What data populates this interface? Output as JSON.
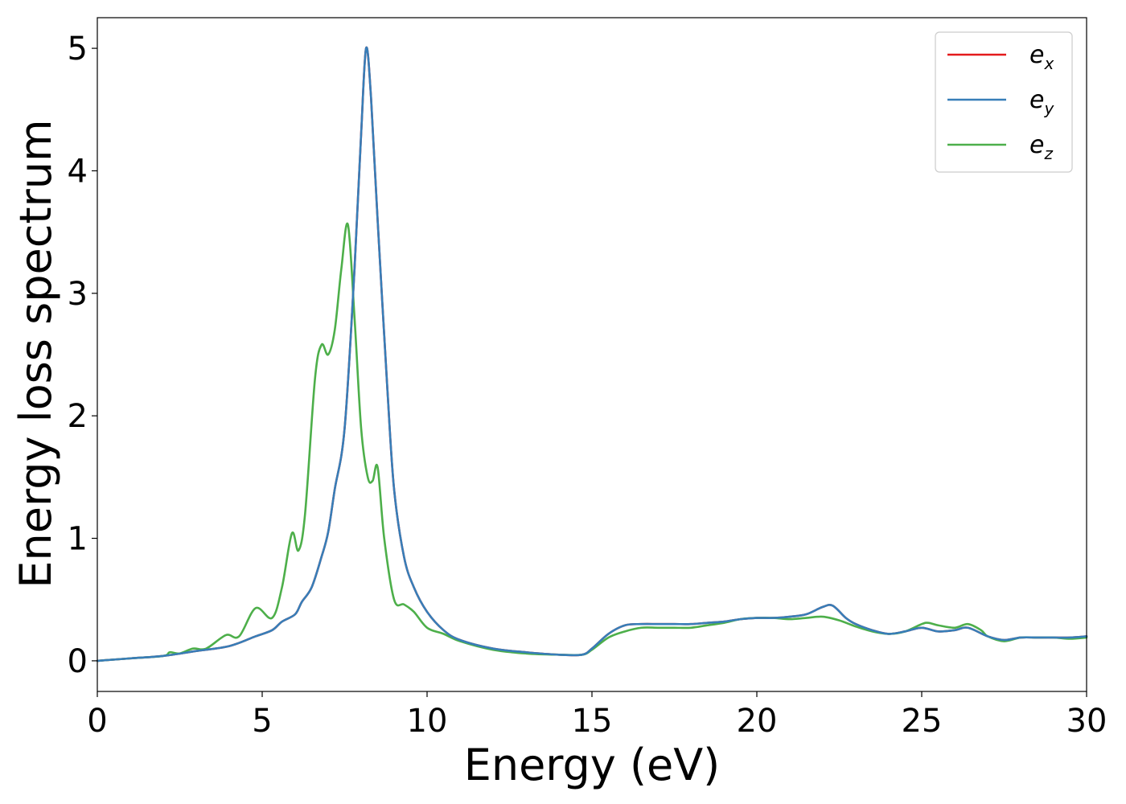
{
  "chart_data": {
    "type": "line",
    "xlabel": "Energy (eV)",
    "ylabel": "Energy loss spectrum",
    "xlim": [
      0,
      30
    ],
    "ylim": [
      -0.25,
      5.25
    ],
    "xticks": [
      0,
      5,
      10,
      15,
      20,
      25,
      30
    ],
    "xtick_labels": [
      "0",
      "5",
      "10",
      "15",
      "20",
      "25",
      "30"
    ],
    "yticks": [
      0,
      1,
      2,
      3,
      4,
      5
    ],
    "ytick_labels": [
      "0",
      "1",
      "2",
      "3",
      "4",
      "5"
    ],
    "grid": false,
    "legend_position": "top-right",
    "series": [
      {
        "name": "e_x",
        "legend_base": "e",
        "legend_sub": "x",
        "color": "#e41a1c",
        "x": [
          0,
          1,
          2,
          3,
          4,
          4.8,
          5.3,
          5.6,
          6.0,
          6.2,
          6.5,
          6.8,
          7.0,
          7.2,
          7.5,
          7.8,
          8.0,
          8.15,
          8.3,
          8.5,
          8.8,
          9.0,
          9.3,
          9.6,
          10.0,
          10.5,
          11,
          12,
          13,
          14,
          14.7,
          15.0,
          15.5,
          16,
          16.5,
          17,
          17.5,
          18,
          18.5,
          19,
          19.5,
          20,
          20.5,
          21,
          21.5,
          22,
          22.3,
          22.7,
          23,
          23.5,
          24,
          24.5,
          25,
          25.5,
          26,
          26.4,
          27,
          27.5,
          28,
          28.5,
          29,
          29.5,
          30
        ],
        "values": [
          0.0,
          0.02,
          0.04,
          0.08,
          0.12,
          0.2,
          0.25,
          0.32,
          0.38,
          0.48,
          0.6,
          0.85,
          1.05,
          1.4,
          1.9,
          3.2,
          4.3,
          5.0,
          4.6,
          3.6,
          2.2,
          1.4,
          0.85,
          0.6,
          0.4,
          0.25,
          0.17,
          0.1,
          0.07,
          0.05,
          0.05,
          0.1,
          0.22,
          0.29,
          0.3,
          0.3,
          0.3,
          0.3,
          0.31,
          0.32,
          0.34,
          0.35,
          0.35,
          0.36,
          0.38,
          0.44,
          0.45,
          0.35,
          0.3,
          0.25,
          0.22,
          0.24,
          0.27,
          0.24,
          0.25,
          0.27,
          0.2,
          0.17,
          0.19,
          0.19,
          0.19,
          0.19,
          0.2
        ]
      },
      {
        "name": "e_y",
        "legend_base": "e",
        "legend_sub": "y",
        "color": "#377eb8",
        "x": [
          0,
          1,
          2,
          3,
          4,
          4.8,
          5.3,
          5.6,
          6.0,
          6.2,
          6.5,
          6.8,
          7.0,
          7.2,
          7.5,
          7.8,
          8.0,
          8.15,
          8.3,
          8.5,
          8.8,
          9.0,
          9.3,
          9.6,
          10.0,
          10.5,
          11,
          12,
          13,
          14,
          14.7,
          15.0,
          15.5,
          16,
          16.5,
          17,
          17.5,
          18,
          18.5,
          19,
          19.5,
          20,
          20.5,
          21,
          21.5,
          22,
          22.3,
          22.7,
          23,
          23.5,
          24,
          24.5,
          25,
          25.5,
          26,
          26.4,
          27,
          27.5,
          28,
          28.5,
          29,
          29.5,
          30
        ],
        "values": [
          0.0,
          0.02,
          0.04,
          0.08,
          0.12,
          0.2,
          0.25,
          0.32,
          0.38,
          0.48,
          0.6,
          0.85,
          1.05,
          1.4,
          1.9,
          3.2,
          4.3,
          5.0,
          4.6,
          3.6,
          2.2,
          1.4,
          0.85,
          0.6,
          0.4,
          0.25,
          0.17,
          0.1,
          0.07,
          0.05,
          0.05,
          0.1,
          0.22,
          0.29,
          0.3,
          0.3,
          0.3,
          0.3,
          0.31,
          0.32,
          0.34,
          0.35,
          0.35,
          0.36,
          0.38,
          0.44,
          0.45,
          0.35,
          0.3,
          0.25,
          0.22,
          0.24,
          0.27,
          0.24,
          0.25,
          0.27,
          0.2,
          0.17,
          0.19,
          0.19,
          0.19,
          0.19,
          0.2
        ]
      },
      {
        "name": "e_z",
        "legend_base": "e",
        "legend_sub": "z",
        "color": "#4daf4a",
        "x": [
          0,
          1,
          2,
          2.2,
          2.5,
          2.9,
          3.3,
          3.9,
          4.3,
          4.8,
          5.3,
          5.6,
          5.9,
          6.1,
          6.3,
          6.6,
          6.8,
          7.0,
          7.2,
          7.4,
          7.6,
          7.8,
          8.0,
          8.2,
          8.35,
          8.5,
          8.7,
          9.0,
          9.3,
          9.6,
          10.0,
          10.5,
          11,
          12,
          13,
          14,
          14.7,
          15.0,
          15.5,
          16,
          16.5,
          17,
          17.5,
          18,
          18.5,
          19,
          19.5,
          20,
          20.5,
          21,
          21.5,
          22,
          22.5,
          23,
          23.5,
          24,
          24.5,
          25,
          25.2,
          25.5,
          26,
          26.4,
          26.8,
          27,
          27.5,
          28,
          28.5,
          29,
          29.5,
          30
        ],
        "values": [
          0.0,
          0.02,
          0.04,
          0.07,
          0.06,
          0.1,
          0.1,
          0.21,
          0.2,
          0.43,
          0.35,
          0.6,
          1.04,
          0.9,
          1.2,
          2.3,
          2.58,
          2.5,
          2.7,
          3.2,
          3.56,
          2.8,
          1.9,
          1.5,
          1.47,
          1.58,
          1.0,
          0.5,
          0.46,
          0.4,
          0.27,
          0.22,
          0.16,
          0.09,
          0.06,
          0.05,
          0.05,
          0.09,
          0.19,
          0.24,
          0.27,
          0.27,
          0.27,
          0.27,
          0.29,
          0.31,
          0.34,
          0.35,
          0.35,
          0.34,
          0.35,
          0.36,
          0.33,
          0.28,
          0.24,
          0.22,
          0.24,
          0.3,
          0.31,
          0.29,
          0.27,
          0.3,
          0.25,
          0.2,
          0.16,
          0.19,
          0.19,
          0.19,
          0.18,
          0.19
        ]
      }
    ]
  }
}
